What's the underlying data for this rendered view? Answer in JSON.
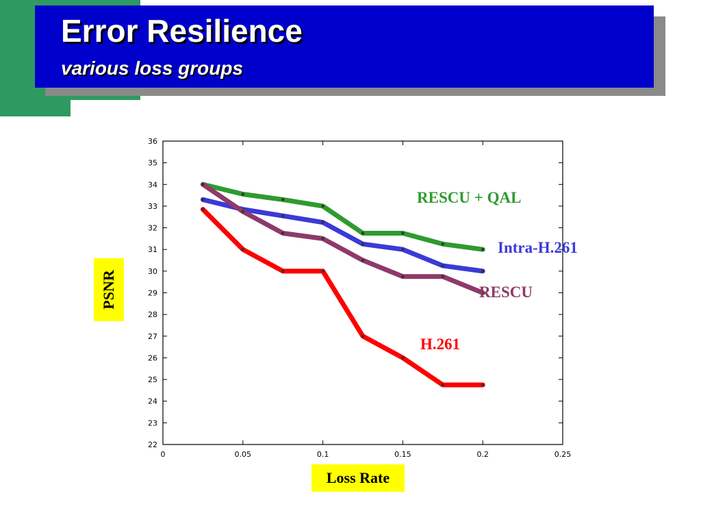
{
  "slide": {
    "title": "Error Resilience",
    "subtitle": "various loss groups"
  },
  "chart_data": {
    "type": "line",
    "xlabel": "Loss Rate",
    "ylabel": "PSNR",
    "xlim": [
      0,
      0.25
    ],
    "ylim": [
      22,
      36
    ],
    "x_ticks": [
      0,
      0.05,
      0.1,
      0.15,
      0.2,
      0.25
    ],
    "x_tick_labels": [
      "0",
      "0.05",
      "0.1",
      "0.15",
      "0.2",
      "0.25"
    ],
    "y_ticks": [
      22,
      23,
      24,
      25,
      26,
      27,
      28,
      29,
      30,
      31,
      32,
      33,
      34,
      35,
      36
    ],
    "y_tick_labels": [
      "22",
      "23",
      "24",
      "25",
      "26",
      "27",
      "28",
      "29",
      "30",
      "31",
      "32",
      "33",
      "34",
      "35",
      "36"
    ],
    "grid": false,
    "series": [
      {
        "name": "RESCU + QAL",
        "color": "#2e9b2e",
        "x": [
          0.025,
          0.05,
          0.075,
          0.1,
          0.125,
          0.15,
          0.175,
          0.2
        ],
        "y": [
          34.0,
          33.55,
          33.3,
          33.0,
          31.75,
          31.75,
          31.25,
          31.0
        ]
      },
      {
        "name": "Intra-H.261",
        "color": "#3a3ad8",
        "x": [
          0.025,
          0.05,
          0.075,
          0.1,
          0.125,
          0.15,
          0.175,
          0.2
        ],
        "y": [
          33.3,
          32.85,
          32.55,
          32.25,
          31.25,
          31.0,
          30.25,
          30.0
        ]
      },
      {
        "name": "RESCU",
        "color": "#8e3a6a",
        "x": [
          0.025,
          0.05,
          0.075,
          0.1,
          0.125,
          0.15,
          0.175,
          0.2
        ],
        "y": [
          34.0,
          32.75,
          31.75,
          31.5,
          30.5,
          29.75,
          29.75,
          29.0
        ]
      },
      {
        "name": "H.261",
        "color": "#ff0000",
        "x": [
          0.025,
          0.05,
          0.075,
          0.1,
          0.125,
          0.15,
          0.175,
          0.2
        ],
        "y": [
          32.85,
          31.0,
          30.0,
          30.0,
          27.0,
          26.0,
          24.75,
          24.75
        ]
      }
    ]
  }
}
